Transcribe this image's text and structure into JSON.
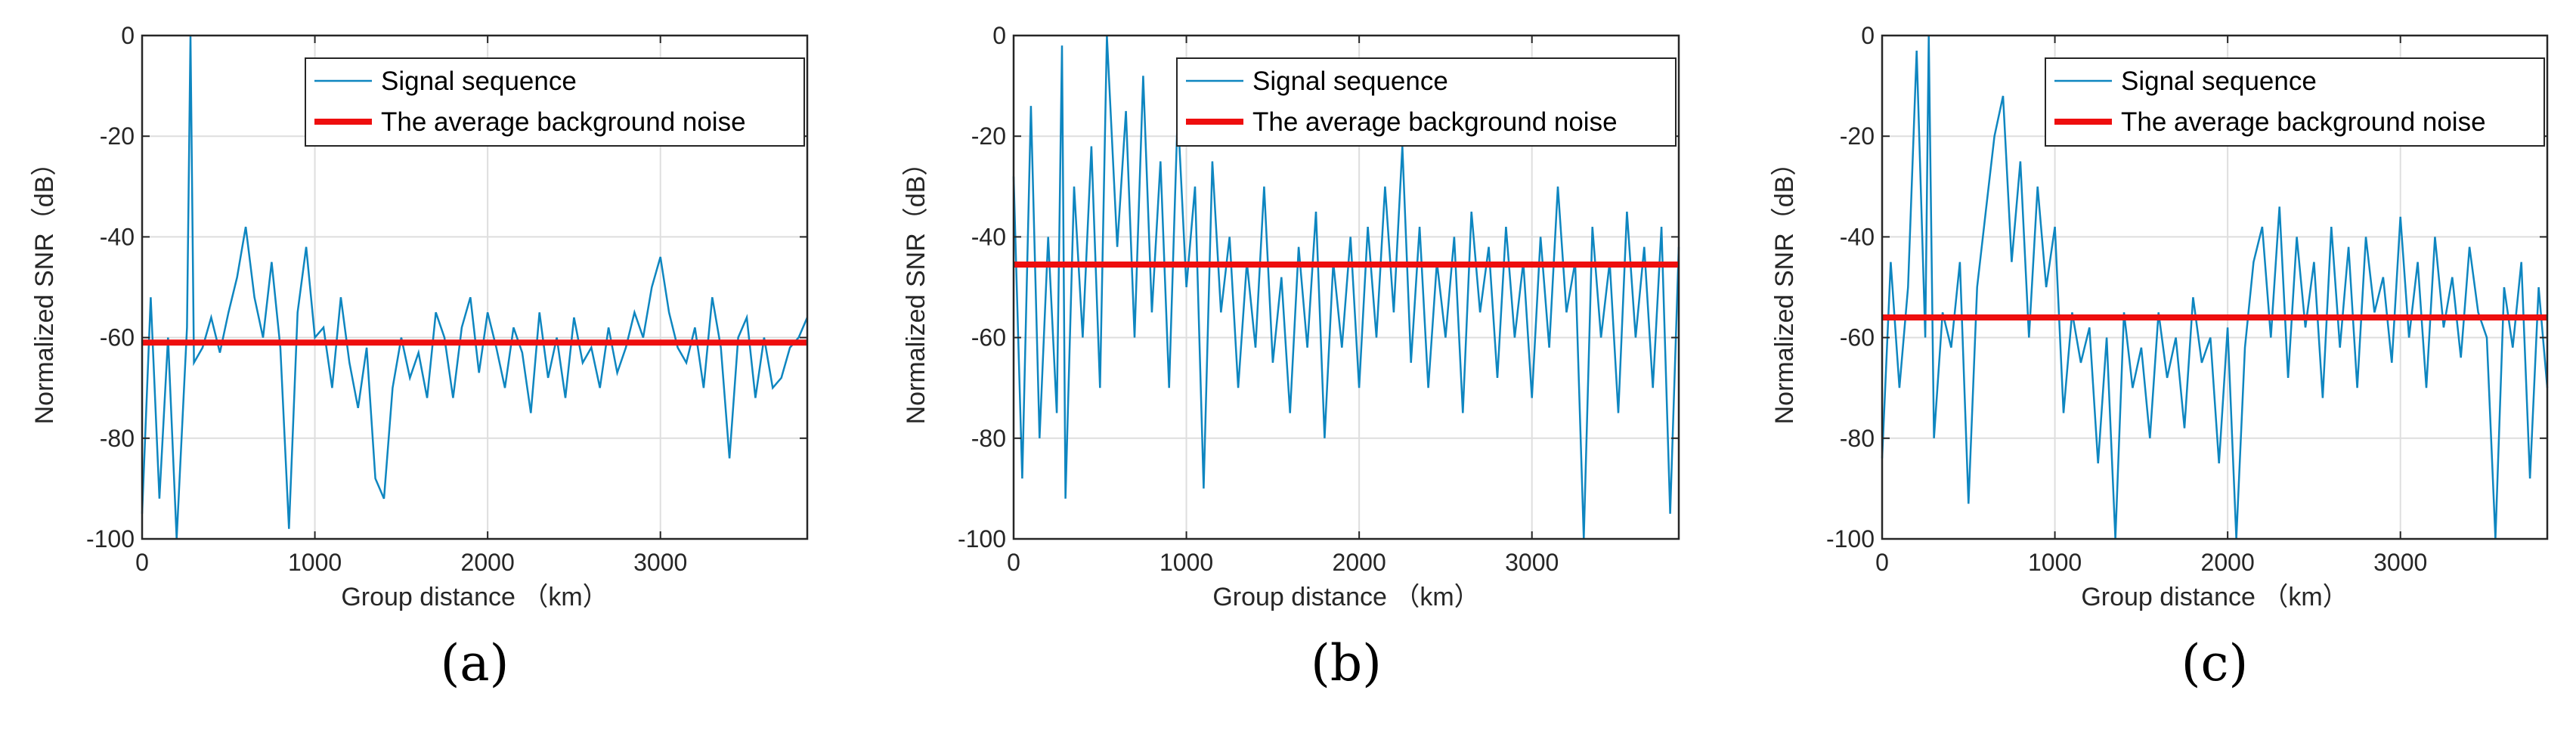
{
  "colors": {
    "signal": "#0e86c0",
    "noise": "#ee0e0e",
    "axis": "#262626",
    "grid": "#dedede"
  },
  "chart_data": [
    {
      "type": "line",
      "panel_label": "(a)",
      "xlabel": "Group distance （km）",
      "ylabel": "Normalized SNR（dB）",
      "xlim": [
        0,
        3850
      ],
      "ylim": [
        -100,
        0
      ],
      "xticks": [
        0,
        1000,
        2000,
        3000
      ],
      "xtick_labels": [
        "0",
        "1000",
        "2000",
        "3000"
      ],
      "yticks": [
        0,
        -20,
        -40,
        -60,
        -80,
        -100
      ],
      "ytick_labels": [
        "0",
        "-20",
        "-40",
        "-60",
        "-80",
        "-100"
      ],
      "grid": true,
      "legend": [
        "Signal sequence",
        "The average background noise"
      ],
      "legend_position": "top-right",
      "series": [
        {
          "name": "Signal sequence",
          "x": [
            0,
            50,
            100,
            150,
            200,
            260,
            280,
            300,
            350,
            400,
            450,
            500,
            550,
            600,
            650,
            700,
            750,
            800,
            850,
            900,
            950,
            1000,
            1050,
            1100,
            1150,
            1200,
            1250,
            1300,
            1350,
            1400,
            1450,
            1500,
            1550,
            1600,
            1650,
            1700,
            1750,
            1800,
            1850,
            1900,
            1950,
            2000,
            2050,
            2100,
            2150,
            2200,
            2250,
            2300,
            2350,
            2400,
            2450,
            2500,
            2550,
            2600,
            2650,
            2700,
            2750,
            2800,
            2850,
            2900,
            2950,
            3000,
            3050,
            3100,
            3150,
            3200,
            3250,
            3300,
            3350,
            3400,
            3450,
            3500,
            3550,
            3600,
            3650,
            3700,
            3750,
            3800,
            3850
          ],
          "values": [
            -95,
            -52,
            -92,
            -60,
            -100,
            -58,
            0,
            -65,
            -62,
            -56,
            -63,
            -55,
            -48,
            -38,
            -52,
            -60,
            -45,
            -62,
            -98,
            -55,
            -42,
            -60,
            -58,
            -70,
            -52,
            -65,
            -74,
            -62,
            -88,
            -92,
            -70,
            -60,
            -68,
            -63,
            -72,
            -55,
            -60,
            -72,
            -58,
            -52,
            -67,
            -55,
            -62,
            -70,
            -58,
            -63,
            -75,
            -55,
            -68,
            -60,
            -72,
            -56,
            -65,
            -62,
            -70,
            -58,
            -67,
            -62,
            -55,
            -60,
            -50,
            -44,
            -55,
            -62,
            -65,
            -58,
            -70,
            -52,
            -62,
            -84,
            -60,
            -56,
            -72,
            -60,
            -70,
            -68,
            -62,
            -60,
            -56
          ]
        },
        {
          "name": "The average background noise",
          "x": [
            0,
            3850
          ],
          "values": [
            -61,
            -61
          ]
        }
      ]
    },
    {
      "type": "line",
      "panel_label": "(b)",
      "xlabel": "Group distance （km）",
      "ylabel": "Normalized SNR（dB）",
      "xlim": [
        0,
        3850
      ],
      "ylim": [
        -100,
        0
      ],
      "xticks": [
        0,
        1000,
        2000,
        3000
      ],
      "xtick_labels": [
        "0",
        "1000",
        "2000",
        "3000"
      ],
      "yticks": [
        0,
        -20,
        -40,
        -60,
        -80,
        -100
      ],
      "ytick_labels": [
        "0",
        "-20",
        "-40",
        "-60",
        "-80",
        "-100"
      ],
      "grid": true,
      "legend": [
        "Signal sequence",
        "The average background noise"
      ],
      "legend_position": "top-right",
      "series": [
        {
          "name": "Signal sequence",
          "x": [
            0,
            50,
            100,
            150,
            200,
            250,
            280,
            300,
            350,
            400,
            450,
            500,
            540,
            600,
            650,
            700,
            750,
            800,
            850,
            900,
            950,
            1000,
            1050,
            1100,
            1150,
            1200,
            1250,
            1300,
            1350,
            1400,
            1450,
            1500,
            1550,
            1600,
            1650,
            1700,
            1750,
            1800,
            1850,
            1900,
            1950,
            2000,
            2050,
            2100,
            2150,
            2200,
            2250,
            2300,
            2350,
            2400,
            2450,
            2500,
            2550,
            2600,
            2650,
            2700,
            2750,
            2800,
            2850,
            2900,
            2950,
            3000,
            3050,
            3100,
            3150,
            3200,
            3250,
            3300,
            3350,
            3400,
            3450,
            3500,
            3550,
            3600,
            3650,
            3700,
            3750,
            3800,
            3850
          ],
          "values": [
            -28,
            -88,
            -14,
            -80,
            -40,
            -75,
            -2,
            -92,
            -30,
            -60,
            -22,
            -70,
            0,
            -42,
            -15,
            -60,
            -8,
            -55,
            -25,
            -70,
            -15,
            -50,
            -30,
            -90,
            -25,
            -55,
            -40,
            -70,
            -45,
            -62,
            -30,
            -65,
            -48,
            -75,
            -42,
            -62,
            -35,
            -80,
            -45,
            -62,
            -40,
            -70,
            -38,
            -60,
            -30,
            -55,
            -22,
            -65,
            -38,
            -70,
            -45,
            -60,
            -40,
            -75,
            -35,
            -55,
            -42,
            -68,
            -38,
            -60,
            -45,
            -72,
            -40,
            -62,
            -30,
            -55,
            -45,
            -100,
            -38,
            -60,
            -45,
            -75,
            -35,
            -60,
            -42,
            -70,
            -38,
            -95,
            -42
          ]
        },
        {
          "name": "The average background noise",
          "x": [
            0,
            3850
          ],
          "values": [
            -45.5,
            -45.5
          ]
        }
      ]
    },
    {
      "type": "line",
      "panel_label": "(c)",
      "xlabel": "Group distance （km）",
      "ylabel": "Normalized SNR（dB）",
      "xlim": [
        0,
        3850
      ],
      "ylim": [
        -100,
        0
      ],
      "xticks": [
        0,
        1000,
        2000,
        3000
      ],
      "xtick_labels": [
        "0",
        "1000",
        "2000",
        "3000"
      ],
      "yticks": [
        0,
        -20,
        -40,
        -60,
        -80,
        -100
      ],
      "ytick_labels": [
        "0",
        "-20",
        "-40",
        "-60",
        "-80",
        "-100"
      ],
      "grid": true,
      "legend": [
        "Signal sequence",
        "The average background noise"
      ],
      "legend_position": "top-right",
      "series": [
        {
          "name": "Signal sequence",
          "x": [
            0,
            50,
            100,
            150,
            200,
            250,
            270,
            300,
            350,
            400,
            450,
            500,
            550,
            600,
            650,
            700,
            750,
            800,
            850,
            900,
            950,
            1000,
            1050,
            1100,
            1150,
            1200,
            1250,
            1300,
            1350,
            1400,
            1450,
            1500,
            1550,
            1600,
            1650,
            1700,
            1750,
            1800,
            1850,
            1900,
            1950,
            2000,
            2050,
            2100,
            2150,
            2200,
            2250,
            2300,
            2350,
            2400,
            2450,
            2500,
            2550,
            2600,
            2650,
            2700,
            2750,
            2800,
            2850,
            2900,
            2950,
            3000,
            3050,
            3100,
            3150,
            3200,
            3250,
            3300,
            3350,
            3400,
            3450,
            3500,
            3550,
            3600,
            3650,
            3700,
            3750,
            3800,
            3850
          ],
          "values": [
            -84,
            -45,
            -70,
            -50,
            -3,
            -60,
            0,
            -80,
            -55,
            -62,
            -45,
            -93,
            -50,
            -35,
            -20,
            -12,
            -45,
            -25,
            -60,
            -30,
            -50,
            -38,
            -75,
            -55,
            -65,
            -58,
            -85,
            -60,
            -100,
            -55,
            -70,
            -62,
            -80,
            -55,
            -68,
            -60,
            -78,
            -52,
            -65,
            -60,
            -85,
            -58,
            -100,
            -62,
            -45,
            -38,
            -60,
            -34,
            -68,
            -40,
            -58,
            -45,
            -72,
            -38,
            -62,
            -42,
            -70,
            -40,
            -55,
            -48,
            -65,
            -36,
            -60,
            -45,
            -70,
            -40,
            -58,
            -48,
            -64,
            -42,
            -55,
            -60,
            -100,
            -50,
            -62,
            -45,
            -88,
            -50,
            -70
          ]
        },
        {
          "name": "The average background noise",
          "x": [
            0,
            3850
          ],
          "values": [
            -56,
            -56
          ]
        }
      ]
    }
  ]
}
